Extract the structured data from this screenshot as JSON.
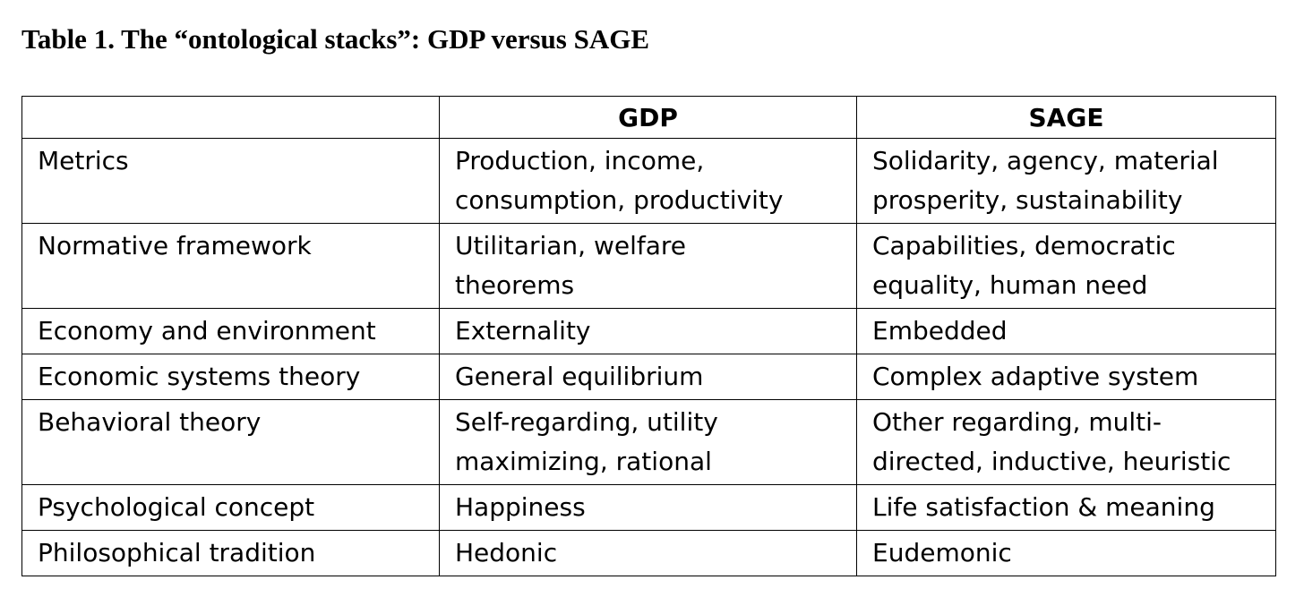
{
  "caption": "Table 1. The “ontological stacks”: GDP versus SAGE",
  "table": {
    "headers": [
      "",
      "GDP",
      "SAGE"
    ],
    "rows": [
      {
        "label": "Metrics",
        "gdp": [
          "Production, income,",
          "consumption, productivity"
        ],
        "sage": [
          "Solidarity, agency, material",
          "prosperity, sustainability"
        ]
      },
      {
        "label": "Normative framework",
        "gdp": [
          "Utilitarian, welfare",
          "theorems"
        ],
        "sage": [
          "Capabilities, democratic",
          "equality, human need"
        ]
      },
      {
        "label": "Economy and environment",
        "gdp": [
          "Externality"
        ],
        "sage": [
          "Embedded"
        ]
      },
      {
        "label": "Economic systems theory",
        "gdp": [
          "General equilibrium"
        ],
        "sage": [
          "Complex adaptive system"
        ]
      },
      {
        "label": "Behavioral theory",
        "gdp": [
          "Self-regarding, utility",
          "maximizing, rational"
        ],
        "sage": [
          "Other regarding, multi-",
          "directed, inductive, heuristic"
        ]
      },
      {
        "label": "Psychological concept",
        "gdp": [
          "Happiness"
        ],
        "sage": [
          "Life satisfaction & meaning"
        ]
      },
      {
        "label": "Philosophical tradition",
        "gdp": [
          "Hedonic"
        ],
        "sage": [
          "Eudemonic"
        ]
      }
    ]
  }
}
